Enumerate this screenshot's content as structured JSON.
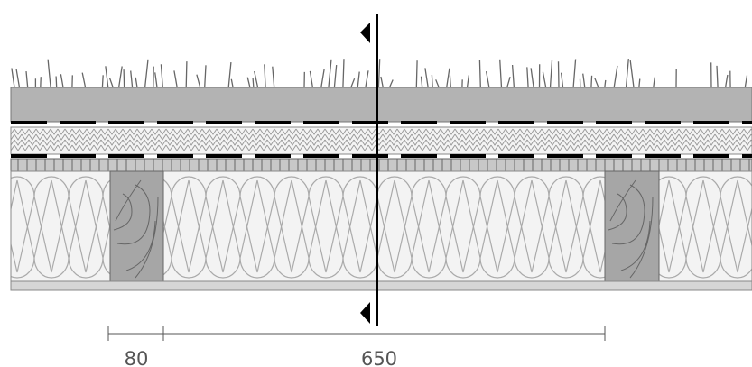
{
  "dimensions": [
    {
      "label": "80"
    },
    {
      "label": "650"
    }
  ]
}
